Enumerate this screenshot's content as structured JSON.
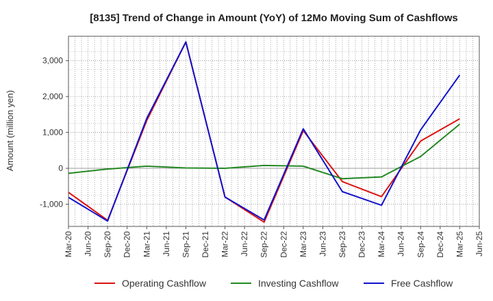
{
  "chart_data": {
    "type": "line",
    "title": "[8135]  Trend of Change in Amount (YoY) of 12Mo Moving Sum of Cashflows",
    "xlabel": "",
    "ylabel": "Amount (million yen)",
    "ylim": [
      -1620,
      3680
    ],
    "yticks": [
      -1000,
      0,
      1000,
      2000,
      3000
    ],
    "ytick_labels": [
      "-1,000",
      "0",
      "1,000",
      "2,000",
      "3,000"
    ],
    "categories": [
      "Mar-20",
      "Jun-20",
      "Sep-20",
      "Dec-20",
      "Mar-21",
      "Jun-21",
      "Sep-21",
      "Dec-21",
      "Mar-22",
      "Jun-22",
      "Sep-22",
      "Dec-22",
      "Mar-23",
      "Jun-23",
      "Sep-23",
      "Dec-23",
      "Mar-24",
      "Jun-24",
      "Sep-24",
      "Dec-24",
      "Mar-25",
      "Jun-25"
    ],
    "grid": true,
    "legend_position": "bottom",
    "series": [
      {
        "name": "Operating Cashflow",
        "color": "#dd1111",
        "values": [
          -670,
          null,
          -1450,
          null,
          1330,
          null,
          3520,
          null,
          -800,
          null,
          -1500,
          null,
          1050,
          null,
          -370,
          null,
          -790,
          null,
          760,
          null,
          1380,
          null
        ]
      },
      {
        "name": "Investing Cashflow",
        "color": "#228822",
        "values": [
          -140,
          null,
          -20,
          null,
          60,
          null,
          10,
          null,
          0,
          null,
          80,
          null,
          60,
          null,
          -290,
          null,
          -240,
          null,
          330,
          null,
          1230,
          null
        ]
      },
      {
        "name": "Free Cashflow",
        "color": "#1111cc",
        "values": [
          -810,
          null,
          -1470,
          null,
          1390,
          null,
          3520,
          null,
          -800,
          null,
          -1440,
          null,
          1100,
          null,
          -650,
          null,
          -1030,
          null,
          1070,
          null,
          2600,
          null
        ]
      }
    ]
  }
}
